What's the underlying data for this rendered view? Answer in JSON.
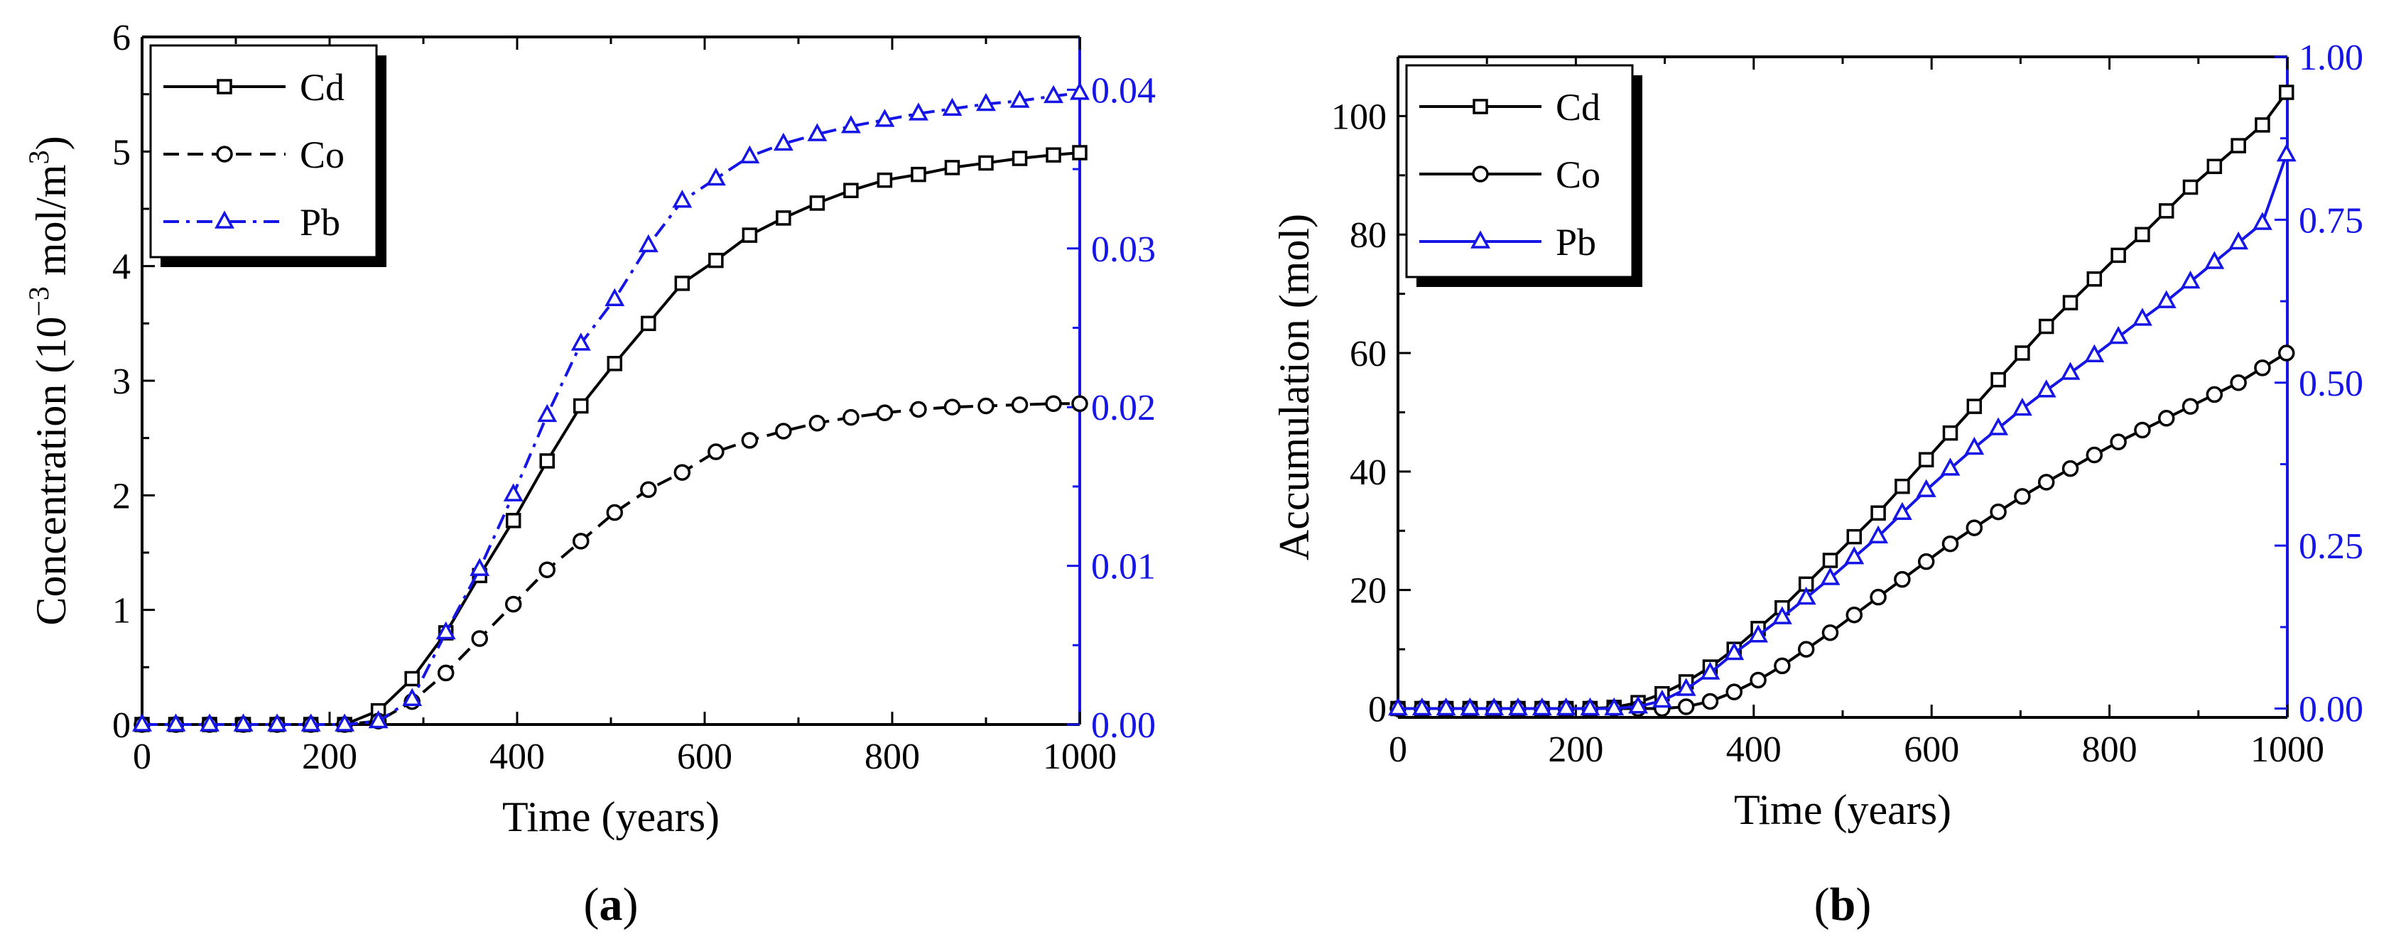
{
  "colors": {
    "black": "#000000",
    "blue": "#1515e6",
    "shadow": "#000000"
  },
  "chart_data": [
    {
      "type": "line",
      "panel_label": "(a)",
      "panel_letter": "a",
      "xlabel": "Time (years)",
      "ylabel_pre": "Concentration (10",
      "ylabel_sup1": "−3",
      "ylabel_mid": " mol/m",
      "ylabel_sup2": "3",
      "ylabel_post": ")",
      "xlim": [
        0,
        1000
      ],
      "ylim_left": [
        0,
        6
      ],
      "ylim_right": [
        0,
        0.04333
      ],
      "xticks": [
        0,
        200,
        400,
        600,
        800,
        1000
      ],
      "yticks_left": [
        0,
        1,
        2,
        3,
        4,
        5,
        6
      ],
      "yticks_right": [
        "0.00",
        "0.01",
        "0.02",
        "0.03",
        "0.04"
      ],
      "yticks_right_values": [
        0,
        0.01,
        0.02,
        0.03,
        0.04
      ],
      "legend": [
        "Cd",
        "Co",
        "Pb"
      ],
      "series": [
        {
          "name": "Cd",
          "axis": "left",
          "marker": "square",
          "dash": "solid",
          "color": "#000000",
          "x": [
            0,
            36,
            72,
            108,
            144,
            180,
            216,
            252,
            288,
            324,
            360,
            396,
            432,
            468,
            504,
            540,
            576,
            612,
            648,
            684,
            720,
            756,
            792,
            828,
            864,
            900,
            936,
            972,
            1000
          ],
          "values": [
            0,
            0,
            0,
            0,
            0,
            0,
            0,
            0.12,
            0.4,
            0.8,
            1.3,
            1.78,
            2.3,
            2.78,
            3.15,
            3.5,
            3.85,
            4.05,
            4.27,
            4.42,
            4.55,
            4.66,
            4.75,
            4.8,
            4.86,
            4.9,
            4.94,
            4.97,
            4.99
          ]
        },
        {
          "name": "Co",
          "axis": "left",
          "marker": "circle",
          "dash": "dashed",
          "color": "#000000",
          "x": [
            0,
            36,
            72,
            108,
            144,
            180,
            216,
            252,
            288,
            324,
            360,
            396,
            432,
            468,
            504,
            540,
            576,
            612,
            648,
            684,
            720,
            756,
            792,
            828,
            864,
            900,
            936,
            972,
            1000
          ],
          "values": [
            0,
            0,
            0,
            0,
            0,
            0,
            0,
            0.03,
            0.2,
            0.45,
            0.75,
            1.05,
            1.35,
            1.6,
            1.85,
            2.05,
            2.2,
            2.38,
            2.48,
            2.56,
            2.63,
            2.68,
            2.72,
            2.75,
            2.77,
            2.78,
            2.79,
            2.8,
            2.8
          ]
        },
        {
          "name": "Pb",
          "axis": "right",
          "marker": "triangle",
          "dash": "dashdot",
          "color": "#1515e6",
          "x": [
            0,
            36,
            72,
            108,
            144,
            180,
            216,
            252,
            288,
            324,
            360,
            396,
            432,
            468,
            504,
            540,
            576,
            612,
            648,
            684,
            720,
            756,
            792,
            828,
            864,
            900,
            936,
            972,
            1000
          ],
          "values": [
            0,
            0,
            0,
            0,
            0,
            0,
            0,
            0.0002,
            0.0016,
            0.0058,
            0.0098,
            0.0145,
            0.0195,
            0.024,
            0.0268,
            0.0302,
            0.033,
            0.0344,
            0.0358,
            0.0366,
            0.0372,
            0.0377,
            0.0381,
            0.0385,
            0.0388,
            0.0391,
            0.0393,
            0.0396,
            0.0398
          ]
        }
      ]
    },
    {
      "type": "line",
      "panel_label": "(b)",
      "panel_letter": "b",
      "xlabel": "Time (years)",
      "ylabel": "Accumulation (mol)",
      "xlim": [
        0,
        1000
      ],
      "ylim_left": [
        -1.5,
        110
      ],
      "ylim_right": [
        -0.0136,
        1.0
      ],
      "xticks": [
        0,
        200,
        400,
        600,
        800,
        1000
      ],
      "yticks_left": [
        0,
        20,
        40,
        60,
        80,
        100
      ],
      "yticks_right": [
        "0.00",
        "0.25",
        "0.50",
        "0.75",
        "1.00"
      ],
      "yticks_right_values": [
        0,
        0.25,
        0.5,
        0.75,
        1.0
      ],
      "legend": [
        "Cd",
        "Co",
        "Pb"
      ],
      "series": [
        {
          "name": "Cd",
          "axis": "left",
          "marker": "square",
          "dash": "solid",
          "color": "#000000",
          "x": [
            0,
            27,
            54,
            81,
            108,
            135,
            162,
            189,
            216,
            243,
            270,
            297,
            324,
            351,
            378,
            405,
            432,
            459,
            486,
            513,
            540,
            567,
            594,
            621,
            648,
            675,
            702,
            729,
            756,
            783,
            810,
            837,
            864,
            891,
            918,
            945,
            972,
            999
          ],
          "values": [
            0,
            0,
            0,
            0,
            0,
            0,
            0,
            0,
            0,
            0.2,
            1,
            2.5,
            4.5,
            7,
            10,
            13.5,
            17,
            21,
            25,
            29,
            33,
            37.5,
            42,
            46.5,
            51,
            55.5,
            60,
            64.5,
            68.5,
            72.5,
            76.5,
            80,
            84,
            88,
            91.5,
            95,
            98.5,
            104
          ]
        },
        {
          "name": "Co",
          "axis": "left",
          "marker": "circle",
          "dash": "solid",
          "color": "#000000",
          "x": [
            0,
            27,
            54,
            81,
            108,
            135,
            162,
            189,
            216,
            243,
            270,
            297,
            324,
            351,
            378,
            405,
            432,
            459,
            486,
            513,
            540,
            567,
            594,
            621,
            648,
            675,
            702,
            729,
            756,
            783,
            810,
            837,
            864,
            891,
            918,
            945,
            972,
            999
          ],
          "values": [
            0,
            0,
            0,
            0,
            0,
            0,
            0,
            0,
            0,
            0,
            0,
            0,
            0.3,
            1.2,
            2.8,
            4.8,
            7.2,
            10,
            12.8,
            15.8,
            18.8,
            21.8,
            24.8,
            27.8,
            30.5,
            33.2,
            35.8,
            38.2,
            40.5,
            42.8,
            45,
            47,
            49,
            51,
            53,
            55,
            57.5,
            60
          ]
        },
        {
          "name": "Pb",
          "axis": "right",
          "marker": "triangle",
          "dash": "solid",
          "color": "#1515e6",
          "x": [
            0,
            27,
            54,
            81,
            108,
            135,
            162,
            189,
            216,
            243,
            270,
            297,
            324,
            351,
            378,
            405,
            432,
            459,
            486,
            513,
            540,
            567,
            594,
            621,
            648,
            675,
            702,
            729,
            756,
            783,
            810,
            837,
            864,
            891,
            918,
            945,
            972,
            999
          ],
          "values": [
            0,
            0,
            0,
            0,
            0,
            0,
            0,
            0,
            0,
            0,
            0.003,
            0.012,
            0.03,
            0.055,
            0.085,
            0.112,
            0.14,
            0.17,
            0.2,
            0.232,
            0.264,
            0.3,
            0.335,
            0.368,
            0.4,
            0.43,
            0.46,
            0.488,
            0.515,
            0.542,
            0.57,
            0.598,
            0.625,
            0.655,
            0.685,
            0.715,
            0.745,
            0.85
          ]
        }
      ]
    }
  ]
}
